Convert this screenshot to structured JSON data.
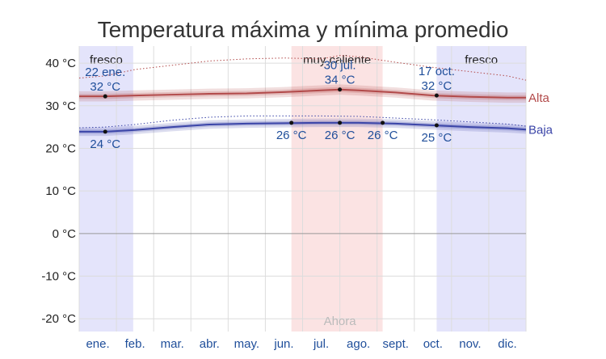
{
  "chart_data": {
    "type": "line",
    "title": "Temperatura máxima y mínima promedio",
    "y_ticks": [
      "40 °C",
      "30 °C",
      "20 °C",
      "10 °C",
      "0 °C",
      "-10 °C",
      "-20 °C"
    ],
    "y_tick_values": [
      40,
      30,
      20,
      10,
      0,
      -10,
      -20
    ],
    "ylim": [
      -23,
      44
    ],
    "xlim": [
      0,
      12
    ],
    "months": [
      "ene.",
      "feb.",
      "mar.",
      "abr.",
      "may.",
      "jun.",
      "jul.",
      "ago.",
      "sept.",
      "oct.",
      "nov.",
      "dic."
    ],
    "month_positions": [
      0.5,
      1.5,
      2.5,
      3.5,
      4.5,
      5.5,
      6.5,
      7.5,
      8.5,
      9.5,
      10.5,
      11.5
    ],
    "season_bands": [
      {
        "label": "fresco",
        "x0": 0,
        "x1": 1.45,
        "color": "#e4e4fb"
      },
      {
        "label": "muy caliente",
        "x0": 5.7,
        "x1": 8.15,
        "color": "#fbe3e3"
      },
      {
        "label": "fresco",
        "x0": 9.6,
        "x1": 12,
        "color": "#e4e4fb"
      }
    ],
    "series": [
      {
        "name": "Alta",
        "color": "#b24a4a",
        "x": [
          0,
          0.7,
          1.5,
          2.5,
          3.5,
          4.5,
          5.5,
          6.5,
          7.0,
          7.5,
          8.5,
          9.5,
          10.5,
          11.5,
          12
        ],
        "values": [
          32.2,
          32.2,
          32.4,
          32.6,
          32.8,
          32.9,
          33.2,
          33.6,
          33.8,
          33.6,
          33.1,
          32.4,
          32.1,
          31.9,
          31.9
        ],
        "p10": [
          31.0,
          31.0,
          31.2,
          31.4,
          31.6,
          31.7,
          32.0,
          32.4,
          32.6,
          32.4,
          31.9,
          31.2,
          30.9,
          30.7,
          30.7
        ],
        "p90": [
          33.4,
          33.4,
          33.6,
          33.8,
          34.0,
          34.1,
          34.4,
          34.8,
          35.0,
          34.8,
          34.3,
          33.6,
          33.3,
          33.1,
          33.1
        ],
        "p25": [
          31.6,
          31.6,
          31.8,
          32.0,
          32.2,
          32.3,
          32.6,
          33.0,
          33.2,
          33.0,
          32.5,
          31.8,
          31.5,
          31.3,
          31.3
        ],
        "p75": [
          32.8,
          32.8,
          33.0,
          33.2,
          33.4,
          33.5,
          33.8,
          34.2,
          34.4,
          34.2,
          33.7,
          33.0,
          32.7,
          32.5,
          32.5
        ],
        "dotted": [
          36.5,
          37.0,
          38.5,
          39.5,
          40.5,
          41.0,
          41.2,
          41.0,
          41.8,
          41.5,
          40.2,
          39.0,
          38.0,
          37.0,
          36.0
        ]
      },
      {
        "name": "Baja",
        "color": "#3b45a8",
        "x": [
          0,
          0.7,
          1.5,
          2.5,
          3.5,
          4.5,
          5.5,
          6.5,
          7.5,
          8.5,
          9.5,
          10.5,
          11.5,
          12
        ],
        "values": [
          23.9,
          23.9,
          24.3,
          25.0,
          25.6,
          25.8,
          25.9,
          26.0,
          26.0,
          25.8,
          25.4,
          25.0,
          24.7,
          24.4
        ],
        "p10": [
          22.9,
          22.9,
          23.3,
          24.0,
          24.6,
          24.8,
          24.9,
          25.0,
          25.0,
          24.8,
          24.4,
          24.0,
          23.7,
          23.4
        ],
        "p90": [
          24.9,
          24.9,
          25.3,
          26.0,
          26.6,
          26.8,
          26.9,
          27.0,
          27.0,
          26.8,
          26.4,
          26.0,
          25.7,
          25.4
        ],
        "p25": [
          23.4,
          23.4,
          23.8,
          24.5,
          25.1,
          25.3,
          25.4,
          25.5,
          25.5,
          25.3,
          24.9,
          24.5,
          24.2,
          23.9
        ],
        "p75": [
          24.4,
          24.4,
          24.8,
          25.5,
          26.1,
          26.3,
          26.4,
          26.5,
          26.5,
          26.3,
          25.9,
          25.5,
          25.2,
          24.9
        ],
        "dotted": [
          24.8,
          25.0,
          25.6,
          26.6,
          27.3,
          27.6,
          27.6,
          27.6,
          27.5,
          27.1,
          26.7,
          26.2,
          25.7,
          25.2
        ]
      }
    ],
    "annotations": [
      {
        "x": 0.7,
        "y": 32.2,
        "date": "22 ene.",
        "value": "32 °C",
        "anchor": "above"
      },
      {
        "x": 0.7,
        "y": 23.9,
        "date": "",
        "value": "24 °C",
        "anchor": "below"
      },
      {
        "x": 7.0,
        "y": 33.8,
        "date": "30 jul.",
        "value": "34 °C",
        "anchor": "above"
      },
      {
        "x": 5.7,
        "y": 26.0,
        "date": "",
        "value": "26 °C",
        "anchor": "below"
      },
      {
        "x": 7.0,
        "y": 26.0,
        "date": "",
        "value": "26 °C",
        "anchor": "below"
      },
      {
        "x": 8.15,
        "y": 26.0,
        "date": "",
        "value": "26 °C",
        "anchor": "below"
      },
      {
        "x": 9.6,
        "y": 32.4,
        "date": "17 oct.",
        "value": "32 °C",
        "anchor": "above"
      },
      {
        "x": 9.6,
        "y": 25.4,
        "date": "",
        "value": "25 °C",
        "anchor": "below"
      }
    ],
    "now_label": "Ahora",
    "now_x": 7.0
  }
}
